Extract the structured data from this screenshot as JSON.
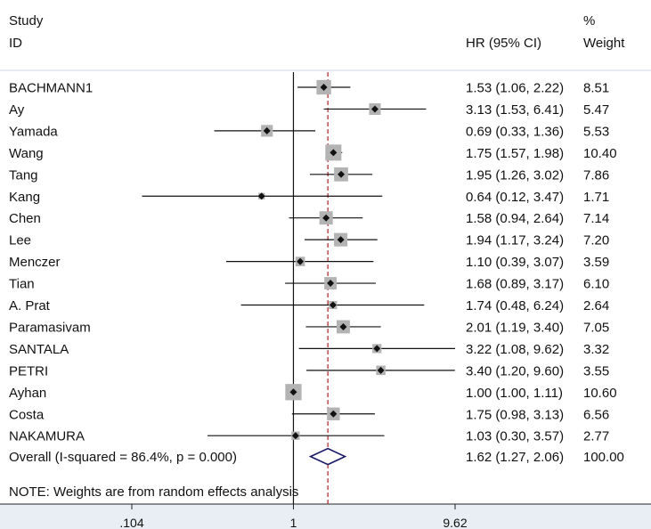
{
  "header": {
    "study_line1": "Study",
    "study_line2": "ID",
    "effect_label": "HR (95% CI)",
    "weight_line1": "%",
    "weight_line2": "Weight"
  },
  "chart_data": {
    "type": "forest",
    "scale": "log",
    "xlim": [
      0.104,
      9.62
    ],
    "xticks": [
      {
        "value": 0.104,
        "label": ".104"
      },
      {
        "value": 1,
        "label": "1"
      },
      {
        "value": 9.62,
        "label": "9.62"
      }
    ],
    "null_line": 1,
    "pooled_line": 1.62,
    "studies": [
      {
        "id": "BACHMANN1",
        "hr": 1.53,
        "lo": 1.06,
        "hi": 2.22,
        "weight": 8.51,
        "ci_text": "1.53 (1.06, 2.22)",
        "weight_text": "8.51"
      },
      {
        "id": "Ay",
        "hr": 3.13,
        "lo": 1.53,
        "hi": 6.41,
        "weight": 5.47,
        "ci_text": "3.13 (1.53, 6.41)",
        "weight_text": "5.47"
      },
      {
        "id": "Yamada",
        "hr": 0.69,
        "lo": 0.33,
        "hi": 1.36,
        "weight": 5.53,
        "ci_text": "0.69 (0.33, 1.36)",
        "weight_text": "5.53"
      },
      {
        "id": "Wang",
        "hr": 1.75,
        "lo": 1.57,
        "hi": 1.98,
        "weight": 10.4,
        "ci_text": "1.75 (1.57, 1.98)",
        "weight_text": "10.40"
      },
      {
        "id": "Tang",
        "hr": 1.95,
        "lo": 1.26,
        "hi": 3.02,
        "weight": 7.86,
        "ci_text": "1.95 (1.26, 3.02)",
        "weight_text": "7.86"
      },
      {
        "id": "Kang",
        "hr": 0.64,
        "lo": 0.12,
        "hi": 3.47,
        "weight": 1.71,
        "ci_text": "0.64 (0.12, 3.47)",
        "weight_text": "1.71"
      },
      {
        "id": "Chen",
        "hr": 1.58,
        "lo": 0.94,
        "hi": 2.64,
        "weight": 7.14,
        "ci_text": "1.58 (0.94, 2.64)",
        "weight_text": "7.14"
      },
      {
        "id": "Lee",
        "hr": 1.94,
        "lo": 1.17,
        "hi": 3.24,
        "weight": 7.2,
        "ci_text": "1.94 (1.17, 3.24)",
        "weight_text": "7.20"
      },
      {
        "id": "Menczer",
        "hr": 1.1,
        "lo": 0.39,
        "hi": 3.07,
        "weight": 3.59,
        "ci_text": "1.10 (0.39, 3.07)",
        "weight_text": "3.59"
      },
      {
        "id": "Tian",
        "hr": 1.68,
        "lo": 0.89,
        "hi": 3.17,
        "weight": 6.1,
        "ci_text": "1.68 (0.89, 3.17)",
        "weight_text": "6.10"
      },
      {
        "id": "A. Prat",
        "hr": 1.74,
        "lo": 0.48,
        "hi": 6.24,
        "weight": 2.64,
        "ci_text": "1.74 (0.48, 6.24)",
        "weight_text": "2.64"
      },
      {
        "id": "Paramasivam",
        "hr": 2.01,
        "lo": 1.19,
        "hi": 3.4,
        "weight": 7.05,
        "ci_text": "2.01 (1.19, 3.40)",
        "weight_text": "7.05"
      },
      {
        "id": "SANTALA",
        "hr": 3.22,
        "lo": 1.08,
        "hi": 9.62,
        "weight": 3.32,
        "ci_text": "3.22 (1.08, 9.62)",
        "weight_text": "3.32"
      },
      {
        "id": "PETRI",
        "hr": 3.4,
        "lo": 1.2,
        "hi": 9.6,
        "weight": 3.55,
        "ci_text": "3.40 (1.20, 9.60)",
        "weight_text": "3.55"
      },
      {
        "id": "Ayhan",
        "hr": 1.0,
        "lo": 1.0,
        "hi": 1.11,
        "weight": 10.6,
        "ci_text": "1.00 (1.00, 1.11)",
        "weight_text": "10.60"
      },
      {
        "id": "Costa",
        "hr": 1.75,
        "lo": 0.98,
        "hi": 3.13,
        "weight": 6.56,
        "ci_text": "1.75 (0.98, 3.13)",
        "weight_text": "6.56"
      },
      {
        "id": "NAKAMURA",
        "hr": 1.03,
        "lo": 0.3,
        "hi": 3.57,
        "weight": 2.77,
        "ci_text": "1.03 (0.30, 3.57)",
        "weight_text": "2.77"
      }
    ],
    "overall": {
      "label": "Overall  (I-squared = 86.4%, p = 0.000)",
      "hr": 1.62,
      "lo": 1.27,
      "hi": 2.06,
      "ci_text": "1.62 (1.27, 2.06)",
      "weight_text": "100.00"
    },
    "note": "NOTE: Weights are from random effects analysis",
    "colors": {
      "background": "#ffffff",
      "axis_band": "#e8eef3",
      "box": "#b3b3b3",
      "point": "#111111",
      "ci_line": "#111111",
      "null_line": "#111111",
      "pooled_line": "#b22222",
      "diamond": "#1a1a66"
    }
  }
}
